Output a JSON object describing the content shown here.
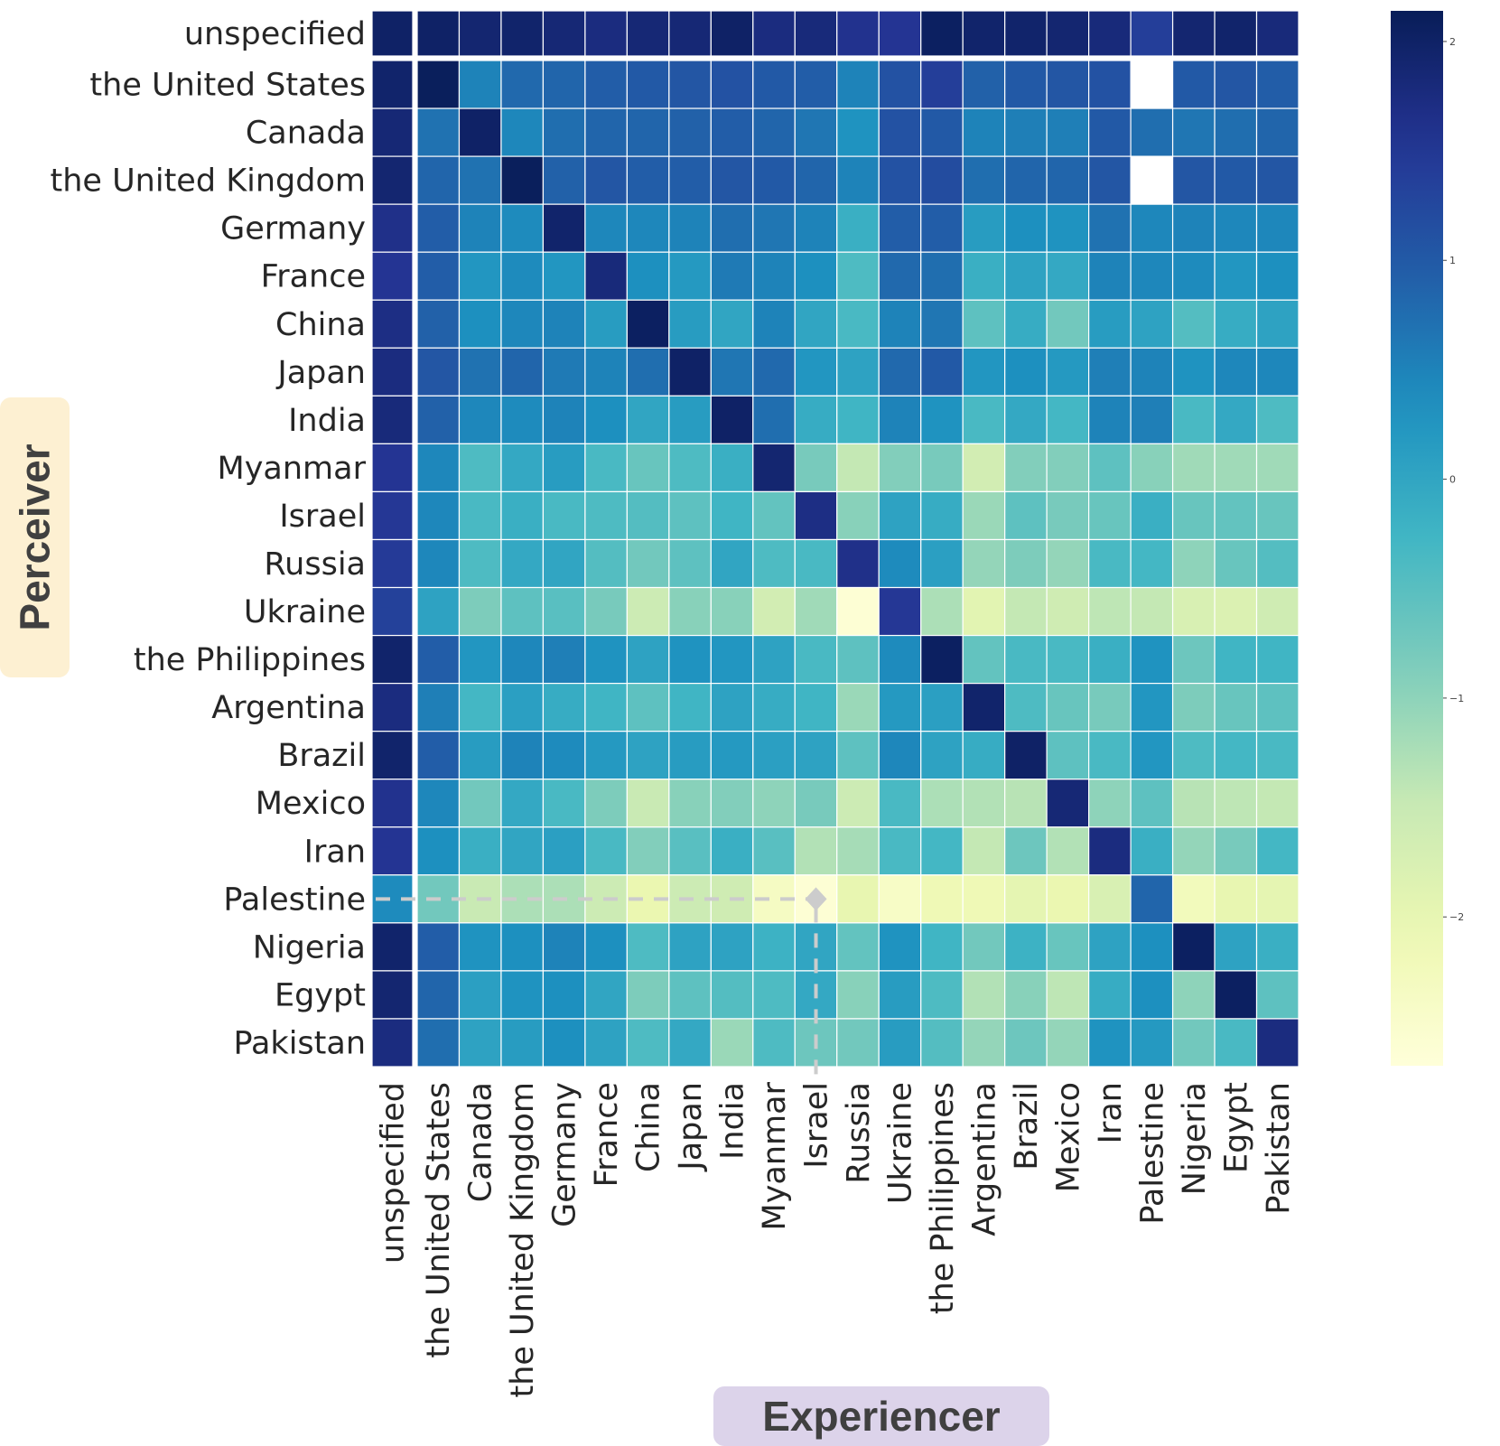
{
  "chart_data": {
    "type": "heatmap",
    "title": "",
    "xlabel": "Experiencer",
    "ylabel": "Perceiver",
    "labels": [
      "unspecified",
      "the United States",
      "Canada",
      "the United Kingdom",
      "Germany",
      "France",
      "China",
      "Japan",
      "India",
      "Myanmar",
      "Israel",
      "Russia",
      "Ukraine",
      "the Philippines",
      "Argentina",
      "Brazil",
      "Mexico",
      "Iran",
      "Palestine",
      "Nigeria",
      "Egypt",
      "Pakistan"
    ],
    "colormap": "YlGnBu",
    "vmin": -2.68,
    "vmax": 2.14,
    "colorbar_ticks": [
      2,
      1,
      0,
      -1,
      -2
    ],
    "colorbar_tick_labels": [
      "2",
      "1",
      "0",
      "−1",
      "−2"
    ],
    "missing_color": "#ffffff",
    "annotation": {
      "type": "dashed-crosshair",
      "row": "Palestine",
      "col": "Israel",
      "marker": "diamond",
      "color": "#cccccc"
    },
    "values": [
      [
        2.0,
        2.0,
        1.9,
        1.95,
        1.85,
        1.75,
        1.85,
        1.85,
        2.0,
        1.75,
        1.8,
        1.6,
        1.55,
        2.05,
        1.95,
        1.95,
        1.9,
        1.8,
        1.4,
        1.9,
        1.95,
        1.8
      ],
      [
        1.95,
        2.1,
        0.5,
        0.8,
        0.85,
        0.95,
        1.0,
        1.05,
        1.1,
        1.0,
        0.95,
        0.5,
        1.1,
        1.4,
        0.9,
        1.0,
        1.05,
        1.1,
        null,
        1.0,
        1.05,
        0.95
      ],
      [
        1.85,
        0.7,
        2.0,
        0.45,
        0.75,
        0.85,
        0.85,
        0.9,
        0.95,
        0.85,
        0.65,
        0.3,
        1.1,
        1.0,
        0.5,
        0.55,
        0.55,
        1.0,
        0.75,
        0.65,
        0.75,
        0.85
      ],
      [
        1.9,
        0.85,
        0.7,
        2.1,
        0.9,
        1.05,
        0.95,
        0.95,
        1.05,
        1.0,
        0.85,
        0.5,
        1.1,
        1.2,
        0.75,
        0.85,
        0.85,
        1.05,
        null,
        1.05,
        1.0,
        1.05
      ],
      [
        1.65,
        0.95,
        0.5,
        0.4,
        1.95,
        0.45,
        0.45,
        0.5,
        0.75,
        0.65,
        0.5,
        -0.15,
        0.95,
        0.95,
        0.15,
        0.35,
        0.3,
        0.7,
        0.45,
        0.5,
        0.45,
        0.45
      ],
      [
        1.55,
        0.95,
        0.25,
        0.4,
        0.25,
        1.8,
        0.35,
        0.2,
        0.6,
        0.5,
        0.35,
        -0.4,
        0.8,
        0.75,
        -0.15,
        0.05,
        -0.05,
        0.5,
        0.45,
        0.4,
        0.25,
        0.35
      ],
      [
        1.7,
        0.9,
        0.35,
        0.45,
        0.5,
        0.15,
        2.05,
        0.15,
        0.0,
        0.5,
        0.0,
        -0.35,
        0.5,
        0.65,
        -0.55,
        -0.1,
        -0.75,
        0.15,
        0.05,
        -0.45,
        -0.1,
        0.05
      ],
      [
        1.75,
        1.05,
        0.7,
        0.85,
        0.6,
        0.5,
        0.75,
        2.0,
        0.65,
        0.8,
        0.25,
        0.05,
        0.8,
        1.0,
        0.25,
        0.35,
        0.2,
        0.55,
        0.5,
        0.3,
        0.45,
        0.45
      ],
      [
        1.8,
        0.9,
        0.45,
        0.4,
        0.5,
        0.35,
        0.0,
        0.15,
        2.0,
        0.75,
        -0.1,
        -0.25,
        0.5,
        0.3,
        -0.35,
        -0.05,
        -0.3,
        0.5,
        0.55,
        -0.35,
        -0.05,
        -0.4
      ],
      [
        1.55,
        0.45,
        -0.4,
        -0.05,
        0.15,
        -0.35,
        -0.65,
        -0.4,
        -0.15,
        1.9,
        -0.8,
        -1.45,
        -0.9,
        -0.8,
        -1.65,
        -0.9,
        -0.9,
        -0.55,
        -0.95,
        -1.15,
        -1.15,
        -1.15
      ],
      [
        1.5,
        0.45,
        -0.35,
        -0.15,
        -0.35,
        -0.4,
        -0.45,
        -0.55,
        -0.25,
        -0.6,
        1.7,
        -0.95,
        0.05,
        -0.1,
        -1.1,
        -0.55,
        -0.8,
        -0.65,
        -0.15,
        -0.65,
        -0.6,
        -0.65
      ],
      [
        1.45,
        0.45,
        -0.4,
        -0.05,
        0.0,
        -0.45,
        -0.75,
        -0.55,
        0.0,
        -0.4,
        -0.35,
        1.65,
        0.4,
        0.1,
        -1.05,
        -0.85,
        -1.05,
        -0.35,
        -0.3,
        -1.0,
        -0.65,
        -0.45
      ],
      [
        1.35,
        0.05,
        -0.85,
        -0.55,
        -0.5,
        -0.8,
        -1.55,
        -0.95,
        -0.95,
        -1.65,
        -1.15,
        -2.6,
        1.5,
        -1.25,
        -1.9,
        -1.45,
        -1.6,
        -1.4,
        -1.45,
        -1.75,
        -1.8,
        -1.6
      ],
      [
        1.95,
        0.95,
        0.25,
        0.45,
        0.55,
        0.3,
        0.05,
        0.3,
        0.25,
        0.05,
        -0.35,
        -0.55,
        0.4,
        2.05,
        -0.6,
        -0.35,
        -0.35,
        -0.15,
        0.3,
        -0.7,
        -0.25,
        -0.25
      ],
      [
        1.75,
        0.55,
        -0.3,
        0.1,
        -0.1,
        -0.25,
        -0.55,
        -0.25,
        0.05,
        -0.1,
        -0.25,
        -1.1,
        0.2,
        0.1,
        1.95,
        -0.4,
        -0.65,
        -0.8,
        0.25,
        -0.85,
        -0.65,
        -0.55
      ],
      [
        1.95,
        0.95,
        0.15,
        0.5,
        0.4,
        0.2,
        0.05,
        0.15,
        0.2,
        0.1,
        0.05,
        -0.55,
        0.45,
        0.05,
        -0.1,
        2.0,
        -0.55,
        -0.35,
        0.25,
        -0.4,
        -0.3,
        -0.35
      ],
      [
        1.6,
        0.45,
        -0.75,
        -0.05,
        -0.35,
        -0.85,
        -1.5,
        -0.95,
        -0.9,
        -1.0,
        -0.8,
        -1.55,
        -0.35,
        -1.25,
        -1.3,
        -1.35,
        1.85,
        -1.0,
        -0.55,
        -1.35,
        -1.4,
        -1.45
      ],
      [
        1.55,
        0.35,
        -0.15,
        0.0,
        0.1,
        -0.35,
        -0.9,
        -0.5,
        -0.15,
        -0.5,
        -1.3,
        -1.2,
        -0.35,
        -0.3,
        -1.45,
        -0.7,
        -1.3,
        1.75,
        -0.15,
        -1.05,
        -0.8,
        -0.3
      ],
      [
        0.4,
        -0.75,
        -1.5,
        -1.25,
        -1.25,
        -1.55,
        -2.05,
        -1.55,
        -1.6,
        -2.35,
        -2.6,
        -2.0,
        -2.4,
        -2.15,
        -2.15,
        -1.95,
        -2.05,
        -1.75,
        0.85,
        -2.25,
        -2.0,
        -1.95
      ],
      [
        1.95,
        0.95,
        0.3,
        0.35,
        0.5,
        0.35,
        -0.4,
        0.05,
        0.05,
        -0.2,
        0.0,
        -0.6,
        0.3,
        -0.25,
        -0.75,
        -0.2,
        -0.65,
        0.05,
        0.35,
        2.05,
        0.05,
        -0.15
      ],
      [
        1.9,
        0.85,
        0.1,
        0.3,
        0.35,
        0.0,
        -0.85,
        -0.55,
        -0.45,
        -0.4,
        -0.05,
        -0.95,
        0.15,
        -0.4,
        -1.3,
        -0.95,
        -1.4,
        -0.1,
        0.35,
        -1.0,
        2.05,
        -0.55
      ],
      [
        1.75,
        0.75,
        0.05,
        0.15,
        0.35,
        0.05,
        -0.4,
        -0.05,
        -1.1,
        -0.4,
        -0.7,
        -0.75,
        0.15,
        -0.45,
        -1.05,
        -0.7,
        -1.05,
        0.3,
        0.2,
        -0.75,
        -0.35,
        1.75
      ]
    ]
  },
  "axis_labels": {
    "y": "Perceiver",
    "x": "Experiencer"
  }
}
